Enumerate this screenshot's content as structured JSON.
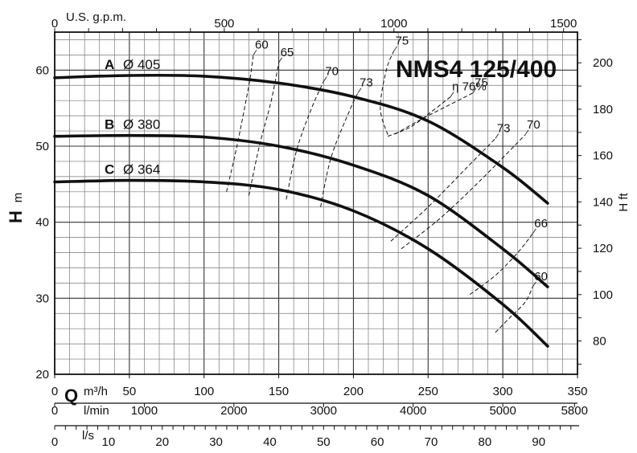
{
  "chart_data": {
    "type": "line",
    "title": "NMS4 125/400",
    "x_primary": {
      "unit_letter": "Q",
      "unit": "m³/h",
      "range": [
        0,
        350
      ],
      "ticks": [
        0,
        50,
        100,
        150,
        200,
        250,
        300,
        350
      ]
    },
    "x_top": {
      "unit": "U.S. g.p.m.",
      "ticks": [
        0,
        500,
        1000,
        1500
      ]
    },
    "x_lmin": {
      "unit": "l/min",
      "ticks": [
        0,
        1000,
        2000,
        3000,
        4000,
        5000,
        5800
      ]
    },
    "x_ls": {
      "unit": "l/s",
      "ticks": [
        0,
        10,
        20,
        30,
        40,
        50,
        60,
        70,
        80,
        90
      ]
    },
    "y_left": {
      "unit_letter": "H",
      "unit": "m",
      "range": [
        20,
        65
      ],
      "ticks": [
        20,
        30,
        40,
        50,
        60
      ]
    },
    "y_right": {
      "unit": "H ft",
      "ticks": [
        80,
        100,
        120,
        140,
        160,
        180,
        200
      ]
    },
    "grid": true,
    "series": [
      {
        "letter": "A",
        "name": "Ø 405",
        "x": [
          0,
          50,
          100,
          150,
          200,
          250,
          300,
          330
        ],
        "y": [
          59,
          59.3,
          59.2,
          58.3,
          56.5,
          53.3,
          47.2,
          42.5
        ]
      },
      {
        "letter": "B",
        "name": "Ø 380",
        "x": [
          0,
          50,
          100,
          150,
          200,
          250,
          300,
          330
        ],
        "y": [
          51.3,
          51.4,
          51.2,
          50,
          47.5,
          43.5,
          36.5,
          31.5
        ]
      },
      {
        "letter": "C",
        "name": "Ø 364",
        "x": [
          0,
          50,
          100,
          150,
          200,
          250,
          300,
          330
        ],
        "y": [
          45.3,
          45.5,
          45.3,
          44.3,
          41.5,
          36.5,
          29.2,
          23.7
        ]
      }
    ],
    "efficiency_curves": [
      {
        "label": "60",
        "x": [
          115,
          122,
          130,
          133
        ],
        "y": [
          44,
          50,
          58,
          62
        ]
      },
      {
        "label": "65",
        "x": [
          130,
          137,
          145,
          150
        ],
        "y": [
          43.5,
          50,
          56,
          61
        ]
      },
      {
        "label": "70",
        "x": [
          155,
          162,
          172,
          180
        ],
        "y": [
          43,
          49.5,
          55,
          58.5
        ]
      },
      {
        "label": "73",
        "x": [
          178,
          185,
          197,
          203
        ],
        "y": [
          42,
          48.5,
          54.5,
          57
        ]
      },
      {
        "label": "75",
        "x": [
          223,
          218,
          222,
          227
        ],
        "y": [
          51.5,
          55,
          60,
          62.5
        ]
      },
      {
        "label": "η 76%",
        "x": [
          223,
          238,
          252,
          265
        ],
        "y": [
          51.3,
          52.5,
          54.5,
          56.5
        ]
      },
      {
        "label": "75",
        "x": [
          228,
          245,
          265,
          280
        ],
        "y": [
          51.6,
          53.5,
          55.5,
          57
        ]
      },
      {
        "label": "73",
        "x": [
          225,
          250,
          275,
          295
        ],
        "y": [
          37.5,
          42,
          47,
          51
        ]
      },
      {
        "label": "70",
        "x": [
          232,
          258,
          285,
          315
        ],
        "y": [
          36.5,
          40.5,
          45.5,
          51.5
        ]
      },
      {
        "label": "66",
        "x": [
          278,
          295,
          310,
          320
        ],
        "y": [
          30.5,
          33,
          36,
          38.5
        ]
      },
      {
        "label": "60",
        "x": [
          295,
          305,
          315,
          320
        ],
        "y": [
          25.5,
          27.5,
          29.5,
          31.5
        ]
      }
    ]
  }
}
